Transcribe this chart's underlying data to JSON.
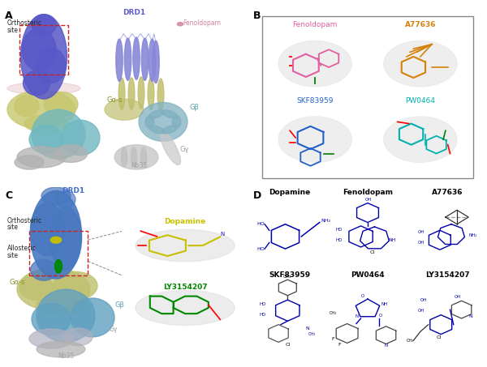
{
  "bg_color": "#ffffff",
  "panel_labels": {
    "A": "A",
    "B": "B",
    "C": "C",
    "D": "D"
  },
  "panel_A": {
    "cryo_DRD1_color": "#5858c8",
    "cryo_Gas_color": "#c8c870",
    "cryo_Gbeta_color": "#70b8c0",
    "cryo_Ggamma_color": "#b0b0b0",
    "cryo_Nb35_color": "#b0b0b0",
    "ribbon_DRD1_color": "#8888d8",
    "ribbon_Gas_color": "#c0c070",
    "ribbon_Gbeta_color": "#80b0c0",
    "ribbon_Ggamma_color": "#c8c8c8",
    "ribbon_Nb35_color": "#c0c0c0",
    "Fenoldopam_color": "#d080a0",
    "DRD1_label_color": "#6060cc",
    "Gas_label_color": "#909030",
    "Gbeta_label_color": "#50a0a8",
    "Ggamma_label_color": "#a0a0a0",
    "Nb35_label_color": "#a0a0a0",
    "orth_box_color": "#cc2222",
    "membrane_color": "#d090a0"
  },
  "panel_B": {
    "box_color": "#888888",
    "compounds": [
      "Fenoldopam",
      "A77636",
      "SKF83959",
      "PW0464"
    ],
    "colors": [
      "#e060a0",
      "#d4820a",
      "#2060c8",
      "#00b0b0"
    ],
    "blob_color": "#e0e0e0"
  },
  "panel_C": {
    "DRD1_color": "#4878c0",
    "Gas_color": "#c0c070",
    "Gbeta_color": "#60a0c0",
    "Ggamma_color": "#b0b0c0",
    "Nb35_color": "#b0b0b0",
    "DRD1_label_color": "#4070c8",
    "Gas_label_color": "#909030",
    "Gbeta_label_color": "#60a0c0",
    "Ggamma_label_color": "#a0a0a0",
    "Nb35_label_color": "#a0a0a0",
    "dopamine_color": "#c8c000",
    "LY_color": "#008800",
    "orth_box_color": "#cc2222",
    "inset_bg": "#f4f4f4",
    "inset_border": "#888888"
  },
  "panel_D": {
    "struct_color": "#0000aa",
    "label_color": "#000000",
    "compounds": [
      "Dopamine",
      "Fenoldopam",
      "A77636",
      "SKF83959",
      "PW0464",
      "LY3154207"
    ]
  },
  "figsize": [
    6.0,
    4.53
  ],
  "dpi": 100
}
